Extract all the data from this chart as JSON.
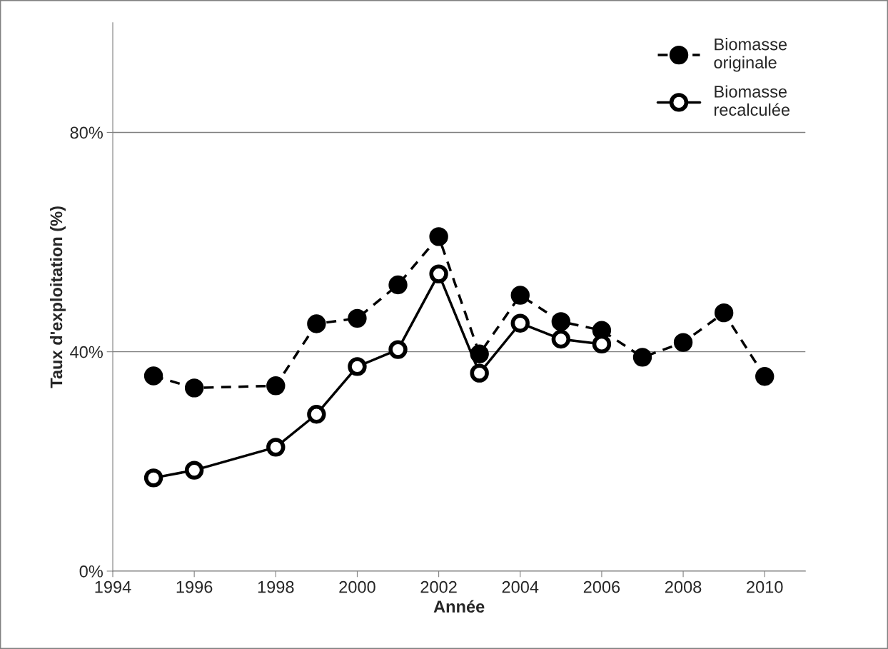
{
  "chart_data": {
    "type": "line",
    "xlabel": "Année",
    "ylabel": "Taux d'exploitation (%)",
    "x": [
      1995,
      1996,
      1998,
      1999,
      2000,
      2001,
      2002,
      2003,
      2004,
      2005,
      2006,
      2007,
      2008,
      2009,
      2010
    ],
    "series": [
      {
        "name": "Biomasse\noriginale",
        "color": "#000000",
        "line_style": "dashed",
        "marker": "circle",
        "values": [
          35.6,
          33.4,
          33.8,
          45.1,
          46.1,
          52.2,
          61.0,
          39.6,
          50.3,
          45.5,
          43.9,
          39.0,
          41.7,
          47.1,
          35.5
        ]
      },
      {
        "name": "Biomasse\nrecalculée",
        "color": "#000000",
        "line_style": "solid",
        "marker": "circle",
        "values": [
          17.0,
          18.4,
          22.6,
          28.6,
          37.3,
          40.4,
          54.2,
          36.1,
          45.2,
          42.3,
          41.4,
          null,
          null,
          null,
          null
        ]
      }
    ],
    "xlim": [
      1994,
      2011
    ],
    "xticks": [
      1994,
      1996,
      1998,
      2000,
      2002,
      2004,
      2006,
      2008,
      2010
    ],
    "ylim": [
      0,
      100
    ],
    "yticks": [
      {
        "value": 0,
        "label": "0%"
      },
      {
        "value": 40,
        "label": "40%"
      },
      {
        "value": 80,
        "label": "80%"
      }
    ],
    "grid": "y",
    "legend": "top right"
  }
}
